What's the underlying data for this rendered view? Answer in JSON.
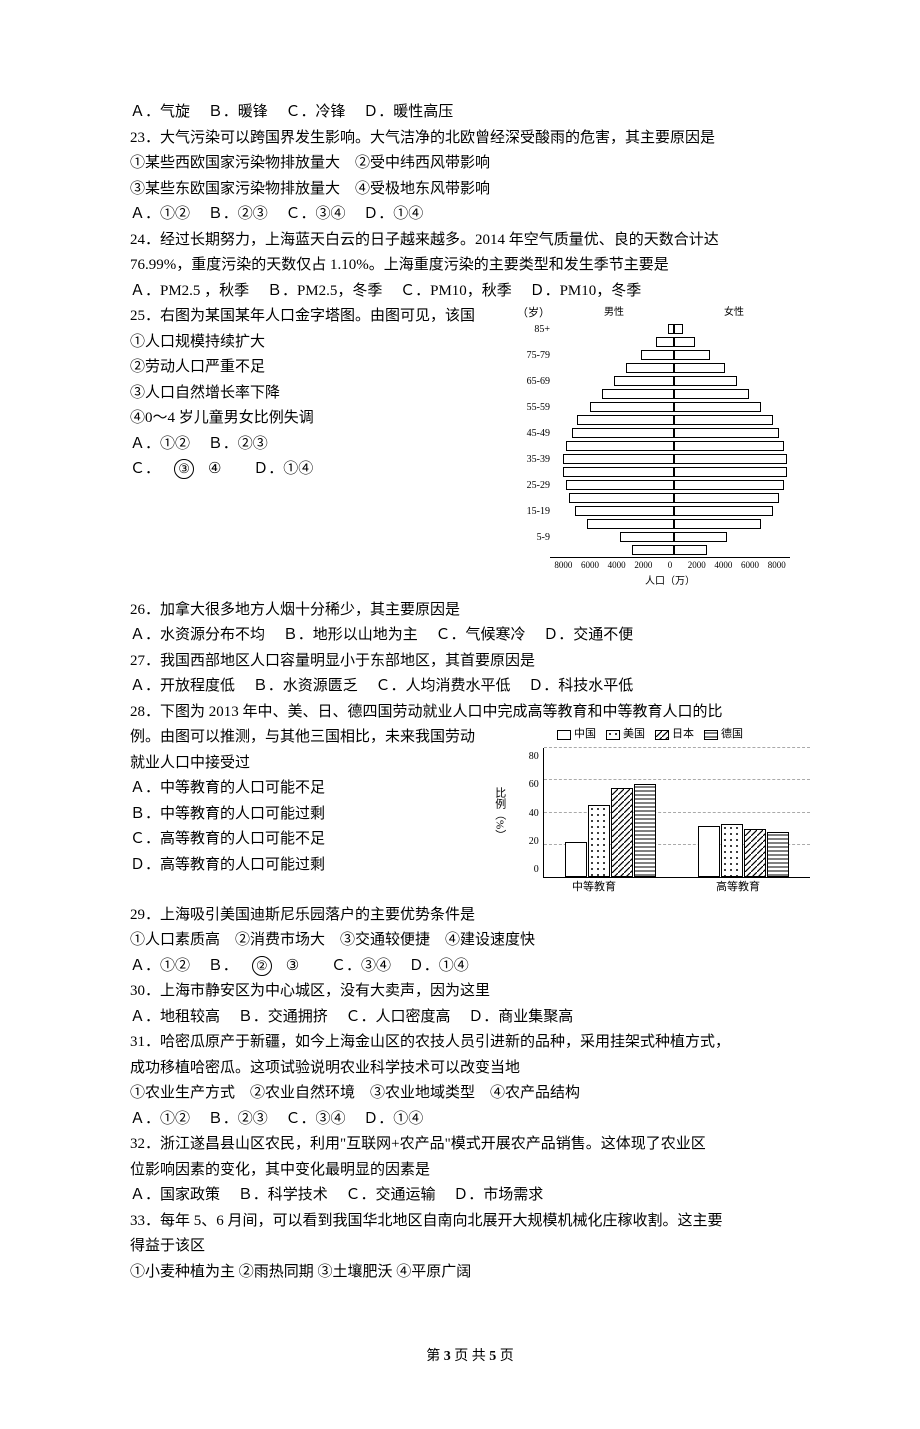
{
  "q22_options": {
    "a": "Ａ．气旋",
    "b": "Ｂ．暖锋",
    "c": "Ｃ．冷锋",
    "d": "Ｄ．暖性高压"
  },
  "q23": {
    "stem": "23．大气污染可以跨国界发生影响。大气洁净的北欧曾经深受酸雨的危害，其主要原因是",
    "s1": "①某些西欧国家污染物排放量大　②受中纬西风带影响",
    "s2": "③某些东欧国家污染物排放量大　④受极地东风带影响",
    "a": "Ａ．①②",
    "b": "Ｂ．②③",
    "c": "Ｃ．③④",
    "d": "Ｄ．①④"
  },
  "q24": {
    "l1": "24．经过长期努力，上海蓝天白云的日子越来越多。2014 年空气质量优、良的天数合计达",
    "l2": "76.99%，重度污染的天数仅占 1.10%。上海重度污染的主要类型和发生季节主要是",
    "a": "Ａ．PM2.5 ，秋季",
    "b": "Ｂ．PM2.5，冬季",
    "c": "Ｃ．PM10，秋季",
    "d": "Ｄ．PM10，冬季"
  },
  "q25": {
    "stem": "25．右图为某国某年人口金字塔图。由图可见，该国",
    "s1": "①人口规模持续扩大",
    "s2": "②劳动人口严重不足",
    "s3": "③人口自然增长率下降",
    "s4": "④0～4 岁儿童男女比例失调",
    "a": "Ａ．①②",
    "b": "Ｂ．②③",
    "c_pre": "Ｃ．",
    "c_circ": "③",
    "c_post": "④",
    "d": "Ｄ．①④"
  },
  "pyramid": {
    "age_unit": "（岁）",
    "male_label": "男性",
    "female_label": "女性",
    "x_label": "人口（万）",
    "ages": [
      "85+",
      "75-79",
      "65-69",
      "55-59",
      "45-49",
      "35-39",
      "25-29",
      "15-19",
      "5-9"
    ],
    "male": [
      4,
      12,
      22,
      32,
      40,
      48,
      56,
      65,
      68,
      72,
      74,
      74,
      72,
      70,
      66,
      58,
      36,
      28
    ],
    "female": [
      6,
      14,
      24,
      34,
      42,
      50,
      58,
      66,
      70,
      73,
      75,
      75,
      73,
      70,
      66,
      58,
      35,
      22
    ],
    "xticks": [
      "8000",
      "6000",
      "4000",
      "2000",
      "0",
      "2000",
      "4000",
      "6000",
      "8000"
    ],
    "bar_fill": "#ffffff",
    "bar_border": "#000000"
  },
  "q26": {
    "stem": "26．加拿大很多地方人烟十分稀少，其主要原因是",
    "a": "Ａ．水资源分布不均",
    "b": "Ｂ．地形以山地为主",
    "c": "Ｃ．气候寒冷",
    "d": "Ｄ．交通不便"
  },
  "q27": {
    "stem": "27．我国西部地区人口容量明显小于东部地区，其首要原因是",
    "a": "Ａ．开放程度低",
    "b": "Ｂ．水资源匮乏",
    "c": "Ｃ．人均消费水平低",
    "d": "Ｄ．科技水平低"
  },
  "q28": {
    "l1": "28．下图为 2013 年中、美、日、德四国劳动就业人口中完成高等教育和中等教育人口的比",
    "l2": "例。由图可以推测，与其他三国相比，未来我国劳动",
    "l3": "就业人口中接受过",
    "a": "Ａ．中等教育的人口可能不足",
    "b": "Ｂ．中等教育的人口可能过剩",
    "c": "Ｃ．高等教育的人口可能不足",
    "d": "Ｄ．高等教育的人口可能过剩"
  },
  "barchart": {
    "legend": [
      "中国",
      "美国",
      "日本",
      "德国"
    ],
    "ylabel": "比例（%）",
    "yticks": [
      "80",
      "60",
      "40",
      "20",
      "0"
    ],
    "ymax": 80,
    "groups": [
      {
        "label": "中等教育",
        "values": [
          22,
          45,
          55,
          58
        ]
      },
      {
        "label": "高等教育",
        "values": [
          32,
          33,
          30,
          28
        ]
      }
    ],
    "patterns": [
      "pat-blank",
      "pat-dots",
      "pat-diag",
      "pat-horiz"
    ],
    "grid_color": "#aaaaaa",
    "border_color": "#000000"
  },
  "q29": {
    "stem": "29．上海吸引美国迪斯尼乐园落户的主要优势条件是",
    "subs": "①人口素质高　②消费市场大　③交通较便捷　④建设速度快",
    "a": "Ａ．①②",
    "b_pre": "Ｂ．",
    "b_circ": "②",
    "b_post": "③",
    "c": "Ｃ．③④",
    "d": "Ｄ．①④"
  },
  "q30": {
    "stem": "30．上海市静安区为中心城区，没有大卖声，因为这里",
    "a": "Ａ．地租较高",
    "b": "Ｂ．交通拥挤",
    "c": "Ｃ．人口密度高",
    "d": "Ｄ．商业集聚高"
  },
  "q31": {
    "l1": "31．哈密瓜原产于新疆，如今上海金山区的农技人员引进新的品种，采用挂架式种植方式，",
    "l2": "成功移植哈密瓜。这项试验说明农业科学技术可以改变当地",
    "subs": "①农业生产方式　②农业自然环境　③农业地域类型　④农产品结构",
    "a": "Ａ．①②",
    "b": "Ｂ．②③",
    "c": "Ｃ．③④",
    "d": "Ｄ．①④"
  },
  "q32": {
    "l1": "32．浙江遂昌县山区农民，利用\"互联网+农产品\"模式开展农产品销售。这体现了农业区",
    "l2": "位影响因素的变化，其中变化最明显的因素是",
    "a": "Ａ．国家政策",
    "b": "Ｂ．科学技术",
    "c": "Ｃ．交通运输",
    "d": "Ｄ．市场需求"
  },
  "q33": {
    "l1": "33．每年 5、6 月间，可以看到我国华北地区自南向北展开大规模机械化庄稼收割。这主要",
    "l2": "得益于该区",
    "subs": "①小麦种植为主 ②雨热同期 ③土壤肥沃 ④平原广阔"
  },
  "footer": {
    "p1": "第 ",
    "pn": "3",
    "p2": " 页 共 ",
    "pt": "5",
    "p3": " 页"
  }
}
